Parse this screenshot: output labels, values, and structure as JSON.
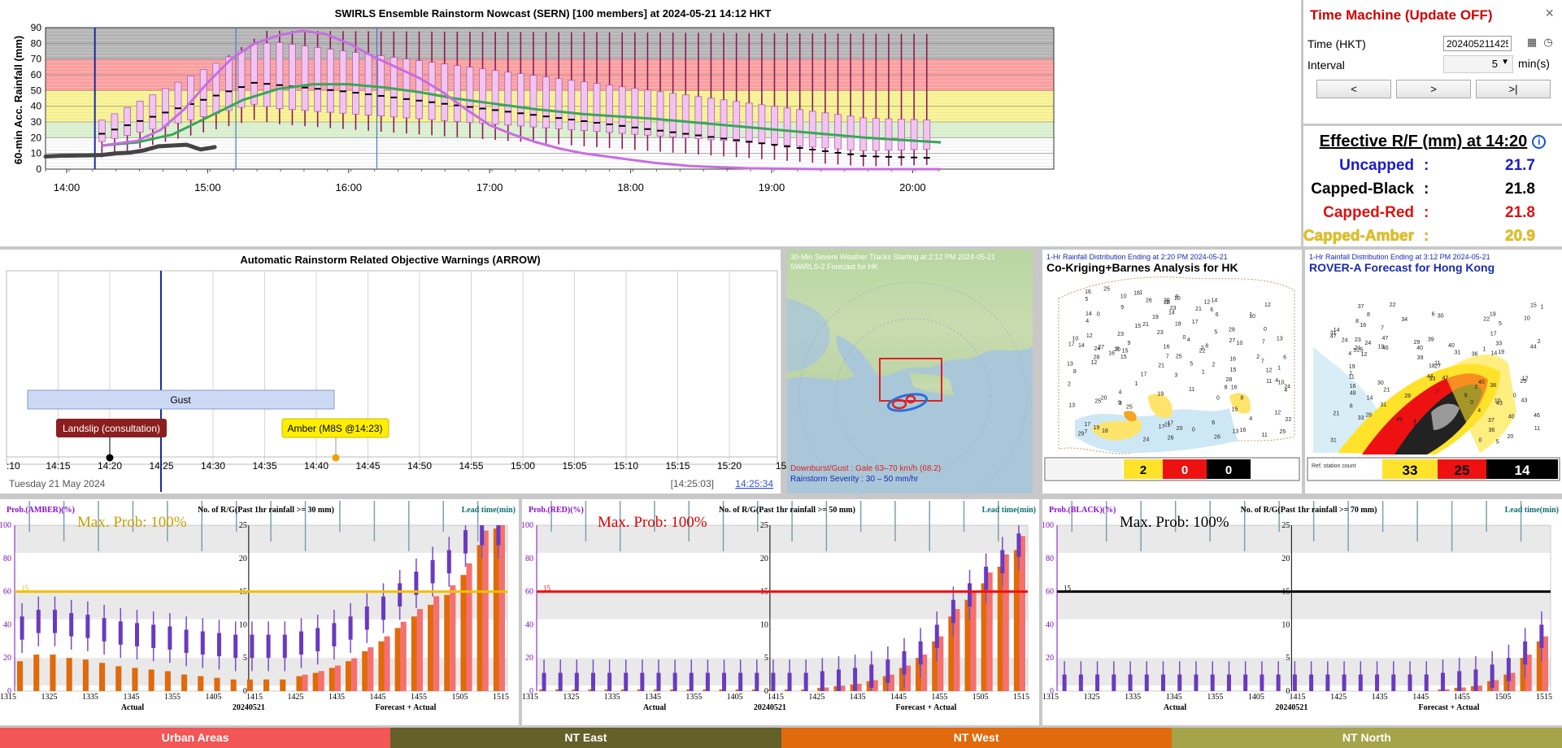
{
  "sern": {
    "title": "SWIRLS Ensemble Rainstorm Nowcast (SERN) [100 members] at 2024-05-21 14:12 HKT",
    "ylabel": "60-min Acc. Rainfall (mm)",
    "yticks": [
      "0",
      "10",
      "20",
      "30",
      "40",
      "50",
      "60",
      "70",
      "80",
      "90"
    ],
    "xticks": [
      "14:00",
      "15:00",
      "16:00",
      "17:00",
      "18:00",
      "19:00",
      "20:00"
    ]
  },
  "time_machine": {
    "title": "Time Machine (Update OFF)",
    "close": "×",
    "time_label": "Time (HKT)",
    "time_value": "202405211425",
    "interval_label": "Interval",
    "interval_value": "5",
    "interval_unit": "min(s)",
    "btn_prev": "<",
    "btn_next": ">",
    "btn_last": ">|"
  },
  "effective_rf": {
    "title": "Effective R/F (mm) at 14:20",
    "info": "i",
    "rows": [
      {
        "name": "Uncapped",
        "sep": ":",
        "value": "21.7",
        "color": "#1a1acc"
      },
      {
        "name": "Capped-Black",
        "sep": ":",
        "value": "21.8",
        "color": "#000000"
      },
      {
        "name": "Capped-Red",
        "sep": ":",
        "value": "21.8",
        "color": "#e01010"
      },
      {
        "name": "Capped-Amber",
        "sep": ":",
        "value": "20.9",
        "color": "#e6c200"
      }
    ]
  },
  "arrow": {
    "title": "Automatic Rainstorm Related Objective Warnings (ARROW)",
    "gust": "Gust",
    "landslip": "Landslip (consultation)",
    "amber": "Amber (M8S @14:23)",
    "xticks": [
      ":10",
      "14:15",
      "14:20",
      "14:25",
      "14:30",
      "14:35",
      "14:40",
      "14:45",
      "14:50",
      "14:55",
      "15:00",
      "15:05",
      "15:10",
      "15:15",
      "15:20",
      "15"
    ],
    "date": "Tuesday 21 May 2024",
    "time1": "[14:25:03]",
    "time2": "14:25:34"
  },
  "swirls2": {
    "title1": "30-Min Severe Weather Tracks Starting at 2:12 PM 2024-05-21",
    "title2": "SWIRLS-2 Forecast for HK",
    "legend1": "Downburst/Gust : Gale 63–70 km/h (68.2)",
    "legend2": "Rainstorm Severity : 30 – 50 mm/hr"
  },
  "cokriging": {
    "subtitle": "1-Hr Rainfall Distribution Ending at 2:20 PM 2024-05-21",
    "title": "Co-Kriging+Barnes Analysis for HK",
    "counts": [
      "2",
      "0",
      "0"
    ]
  },
  "rovera": {
    "subtitle": "1-Hr Rainfall Distribution Ending at 3:12 PM 2024-05-21",
    "title": "ROVER-A Forecast for Hong Kong",
    "counts": [
      "33",
      "25",
      "14"
    ],
    "legend_label": "Ref. station count"
  },
  "prob_charts": [
    {
      "prob_label": "Prob.(AMBER)(%)",
      "count_label": "No. of R/G(Past 1hr rainfall >= 30 mm)",
      "lead_label": "Lead time(min)",
      "max_prob": "Max. Prob: 100%",
      "color": "#f0c000",
      "maxcolor": "#c8a000"
    },
    {
      "prob_label": "Prob.(RED)(%)",
      "count_label": "No. of R/G(Past 1hr rainfall >= 50 mm)",
      "lead_label": "Lead time(min)",
      "max_prob": "Max. Prob: 100%",
      "color": "#ee1111",
      "maxcolor": "#dd0000"
    },
    {
      "prob_label": "Prob.(BLACK)(%)",
      "count_label": "No. of R/G(Past 1hr rainfall >= 70 mm)",
      "lead_label": "Lead time(min)",
      "max_prob": "Max. Prob: 100%",
      "color": "#000000",
      "maxcolor": "#000000"
    }
  ],
  "prob_axes": {
    "left_ticks": [
      "0",
      "20",
      "40",
      "60",
      "80",
      "100"
    ],
    "mid_ticks": [
      "0",
      "5",
      "10",
      "15",
      "20",
      "25"
    ],
    "x_ticks": [
      "1315",
      "1325",
      "1335",
      "1345",
      "1355",
      "1405",
      "1415",
      "1425",
      "1435",
      "1445",
      "1455",
      "1505",
      "1515"
    ],
    "x_actual": "Actual",
    "x_date": "20240521",
    "x_forecast": "Forecast + Actual",
    "threshold": "15"
  },
  "regions": [
    {
      "label": "Urban Areas",
      "color": "#f25656"
    },
    {
      "label": "NT East",
      "color": "#64602a"
    },
    {
      "label": "NT West",
      "color": "#e06a0c"
    },
    {
      "label": "NT North",
      "color": "#a5a44a"
    }
  ]
}
